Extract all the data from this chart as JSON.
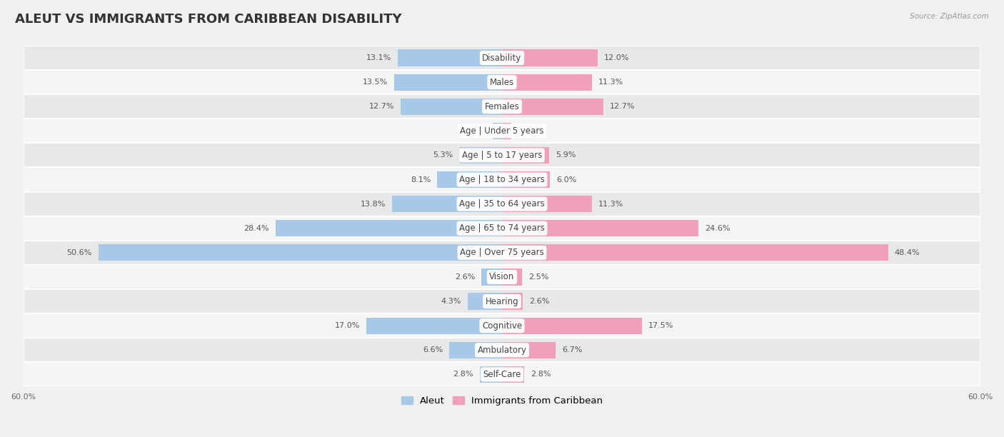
{
  "title": "ALEUT VS IMMIGRANTS FROM CARIBBEAN DISABILITY",
  "source": "Source: ZipAtlas.com",
  "categories": [
    "Disability",
    "Males",
    "Females",
    "Age | Under 5 years",
    "Age | 5 to 17 years",
    "Age | 18 to 34 years",
    "Age | 35 to 64 years",
    "Age | 65 to 74 years",
    "Age | Over 75 years",
    "Vision",
    "Hearing",
    "Cognitive",
    "Ambulatory",
    "Self-Care"
  ],
  "aleut_values": [
    13.1,
    13.5,
    12.7,
    1.2,
    5.3,
    8.1,
    13.8,
    28.4,
    50.6,
    2.6,
    4.3,
    17.0,
    6.6,
    2.8
  ],
  "caribbean_values": [
    12.0,
    11.3,
    12.7,
    1.2,
    5.9,
    6.0,
    11.3,
    24.6,
    48.4,
    2.5,
    2.6,
    17.5,
    6.7,
    2.8
  ],
  "aleut_color": "#a8c8e8",
  "caribbean_color": "#f0a0b8",
  "axis_limit": 60.0,
  "background_color": "#f0f0f0",
  "row_colors": [
    "#e8e8e8",
    "#f5f5f5"
  ],
  "title_fontsize": 13,
  "label_fontsize": 8.5,
  "value_fontsize": 8,
  "legend_fontsize": 9.5
}
